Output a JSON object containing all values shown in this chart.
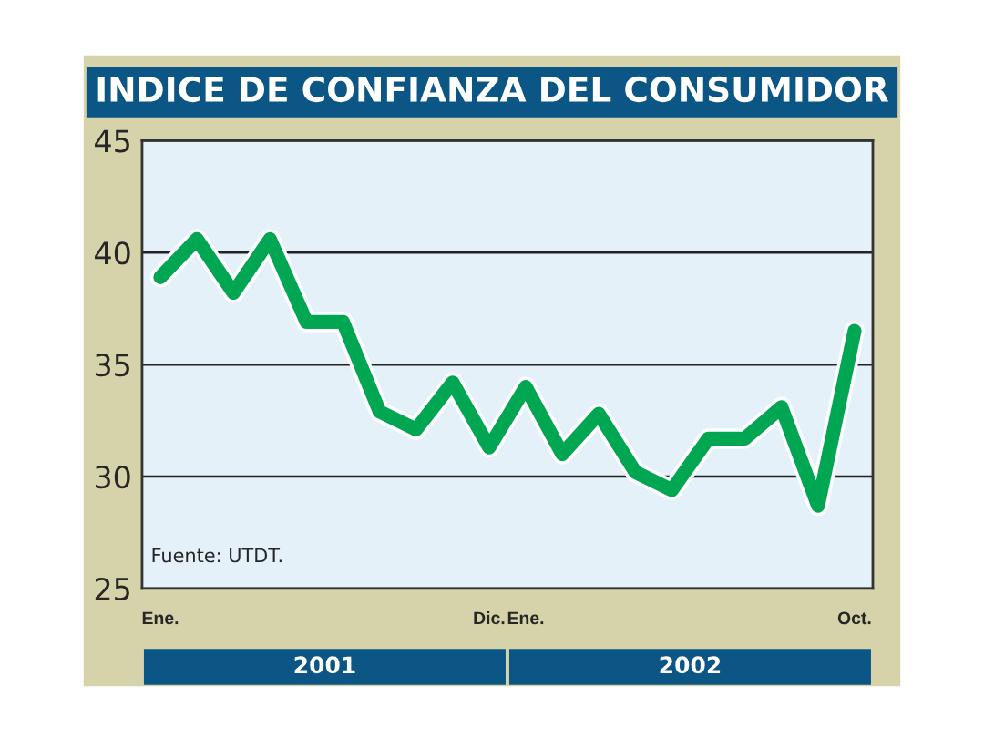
{
  "chart_data": {
    "type": "line",
    "title": "INDICE DE CONFIANZA DEL CONSUMIDOR",
    "categories": [
      "Ene.",
      null,
      null,
      null,
      null,
      null,
      null,
      null,
      null,
      "Dic.",
      "Ene.",
      null,
      null,
      null,
      null,
      null,
      null,
      null,
      null,
      "Oct."
    ],
    "series": [
      {
        "color": "#00a651",
        "values": [
          38.9,
          40.6,
          38.2,
          40.6,
          36.9,
          36.9,
          32.9,
          32.1,
          34.2,
          31.3,
          34.0,
          31.0,
          32.8,
          30.2,
          29.4,
          31.7,
          31.7,
          33.1,
          28.7,
          36.5
        ]
      }
    ],
    "ylim": [
      25,
      45
    ],
    "yticks": [
      25,
      30,
      35,
      40,
      45
    ],
    "grid": "y",
    "marker": "none",
    "line_style": "solid",
    "annotations": [
      "Fuente: UTDT.",
      "2001",
      "2002"
    ]
  }
}
